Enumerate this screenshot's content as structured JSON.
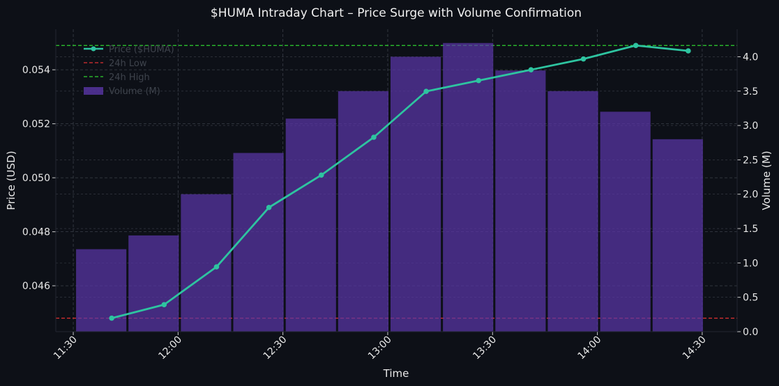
{
  "chart_data": {
    "type": "bar+line",
    "title": "$HUMA Intraday Chart – Price Surge with Volume Confirmation",
    "xlabel": "Time",
    "ylabel_left": "Price (USD)",
    "ylabel_right": "Volume (M)",
    "x_ticks": [
      "11:30",
      "12:00",
      "12:30",
      "13:00",
      "13:30",
      "14:00",
      "14:30"
    ],
    "xlim_minutes": [
      685,
      880
    ],
    "ylim_left": [
      0.0443,
      0.0555
    ],
    "ylim_right": [
      0.0,
      4.4
    ],
    "y_ticks_left": [
      "0.046",
      "0.048",
      "0.050",
      "0.052",
      "0.054"
    ],
    "y_ticks_right": [
      "0.0",
      "0.5",
      "1.0",
      "1.5",
      "2.0",
      "2.5",
      "3.0",
      "3.5",
      "4.0"
    ],
    "grid": true,
    "legend_position": "upper-left",
    "legend": [
      {
        "label": "Price ($HUMA)",
        "kind": "line-marker",
        "color": "#2ec4a0"
      },
      {
        "label": "24h Low",
        "kind": "dashed",
        "color": "#e03131"
      },
      {
        "label": "24h High",
        "kind": "dashed",
        "color": "#2fd12f"
      },
      {
        "label": "Volume (M)",
        "kind": "bar",
        "color": "#4b2f86"
      }
    ],
    "low_line": 0.0448,
    "high_line": 0.0549,
    "series": [
      {
        "name": "Price ($HUMA)",
        "type": "line",
        "times": [
          "11:41",
          "11:56",
          "12:11",
          "12:26",
          "12:41",
          "12:56",
          "13:11",
          "13:26",
          "13:41",
          "13:56",
          "14:11",
          "14:26"
        ],
        "x_minutes": [
          701,
          716,
          731,
          746,
          761,
          776,
          791,
          806,
          821,
          836,
          851,
          866
        ],
        "values": [
          0.0448,
          0.0453,
          0.0467,
          0.0489,
          0.0501,
          0.0515,
          0.0532,
          0.0536,
          0.054,
          0.0544,
          0.0549,
          0.0547
        ]
      },
      {
        "name": "Volume (M)",
        "type": "bar",
        "x_minutes": [
          698,
          713,
          728,
          743,
          758,
          773,
          788,
          803,
          818,
          833,
          848,
          863
        ],
        "values": [
          1.2,
          1.4,
          2.0,
          2.6,
          3.1,
          3.5,
          4.0,
          4.2,
          3.8,
          3.5,
          3.2,
          2.8
        ]
      }
    ],
    "colors": {
      "background": "#0d1017",
      "price_line": "#2ec4a0",
      "price_line_under_bars": "#4a78b8",
      "bars": "#4b2f86",
      "grid": "#3a3f48",
      "text": "#e8e8e8"
    }
  }
}
